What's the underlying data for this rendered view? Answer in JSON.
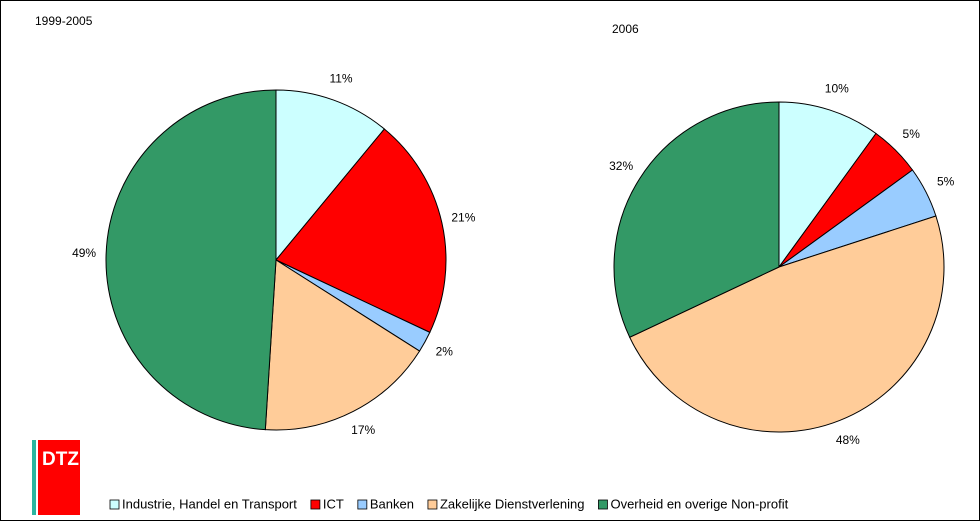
{
  "chart_data": [
    {
      "type": "pie",
      "title": "1999-2005",
      "values": [
        11,
        21,
        2,
        17,
        49
      ],
      "value_labels": [
        "11%",
        "21%",
        "2%",
        "17%",
        "49%"
      ]
    },
    {
      "type": "pie",
      "title": "2006",
      "values": [
        10,
        5,
        5,
        48,
        32
      ],
      "value_labels": [
        "10%",
        "5%",
        "5%",
        "48%",
        "32%"
      ]
    }
  ],
  "legend": {
    "labels": [
      "Industrie, Handel en Transport",
      "ICT",
      "Banken",
      "Zakelijke Dienstverlening",
      "Overheid en overige Non-profit"
    ],
    "colors": [
      "#ccffff",
      "#ff0000",
      "#99ccff",
      "#ffcc99",
      "#339966"
    ]
  },
  "logo": "DTZ"
}
